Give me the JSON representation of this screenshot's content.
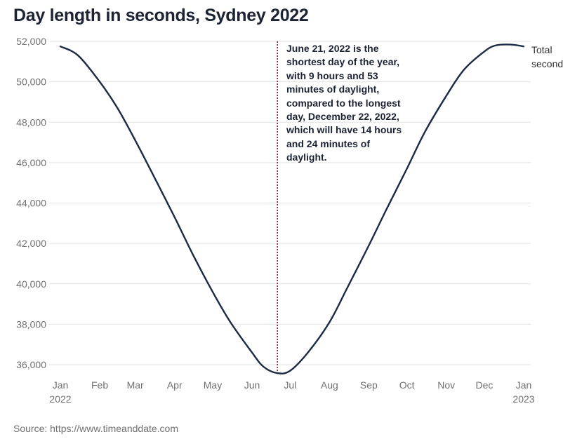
{
  "chart_data": {
    "type": "line",
    "title": "Day length in seconds, Sydney 2022",
    "xlabel": "",
    "ylabel": "",
    "series": [
      {
        "name": "Total seconds",
        "color": "#1c2a44",
        "points": [
          {
            "x": "2022-01-01",
            "y": 51750
          },
          {
            "x": "2022-01-15",
            "y": 51300
          },
          {
            "x": "2022-02-01",
            "y": 50000
          },
          {
            "x": "2022-02-15",
            "y": 48700
          },
          {
            "x": "2022-03-01",
            "y": 47100
          },
          {
            "x": "2022-03-15",
            "y": 45400
          },
          {
            "x": "2022-04-01",
            "y": 43300
          },
          {
            "x": "2022-04-15",
            "y": 41500
          },
          {
            "x": "2022-05-01",
            "y": 39600
          },
          {
            "x": "2022-05-15",
            "y": 38100
          },
          {
            "x": "2022-06-01",
            "y": 36600
          },
          {
            "x": "2022-06-10",
            "y": 35900
          },
          {
            "x": "2022-06-21",
            "y": 35580
          },
          {
            "x": "2022-07-01",
            "y": 35700
          },
          {
            "x": "2022-07-15",
            "y": 36600
          },
          {
            "x": "2022-08-01",
            "y": 38100
          },
          {
            "x": "2022-08-15",
            "y": 39800
          },
          {
            "x": "2022-09-01",
            "y": 41900
          },
          {
            "x": "2022-09-15",
            "y": 43700
          },
          {
            "x": "2022-10-01",
            "y": 45700
          },
          {
            "x": "2022-10-15",
            "y": 47500
          },
          {
            "x": "2022-11-01",
            "y": 49300
          },
          {
            "x": "2022-11-15",
            "y": 50600
          },
          {
            "x": "2022-12-01",
            "y": 51500
          },
          {
            "x": "2022-12-10",
            "y": 51800
          },
          {
            "x": "2022-12-22",
            "y": 51840
          },
          {
            "x": "2023-01-01",
            "y": 51750
          }
        ]
      }
    ],
    "y_ticks": [
      {
        "value": 36000,
        "label": "36,000"
      },
      {
        "value": 38000,
        "label": "38,000"
      },
      {
        "value": 40000,
        "label": "40,000"
      },
      {
        "value": 42000,
        "label": "42,000"
      },
      {
        "value": 44000,
        "label": "44,000"
      },
      {
        "value": 46000,
        "label": "46,000"
      },
      {
        "value": 48000,
        "label": "48,000"
      },
      {
        "value": 50000,
        "label": "50,000"
      },
      {
        "value": 52000,
        "label": "52,000"
      }
    ],
    "x_ticks": [
      {
        "date": "2022-01-01",
        "label": "Jan",
        "sublabel": "2022"
      },
      {
        "date": "2022-02-01",
        "label": "Feb",
        "sublabel": ""
      },
      {
        "date": "2022-03-01",
        "label": "Mar",
        "sublabel": ""
      },
      {
        "date": "2022-04-01",
        "label": "Apr",
        "sublabel": ""
      },
      {
        "date": "2022-05-01",
        "label": "May",
        "sublabel": ""
      },
      {
        "date": "2022-06-01",
        "label": "Jun",
        "sublabel": ""
      },
      {
        "date": "2022-07-01",
        "label": "Jul",
        "sublabel": ""
      },
      {
        "date": "2022-08-01",
        "label": "Aug",
        "sublabel": ""
      },
      {
        "date": "2022-09-01",
        "label": "Sep",
        "sublabel": ""
      },
      {
        "date": "2022-10-01",
        "label": "Oct",
        "sublabel": ""
      },
      {
        "date": "2022-11-01",
        "label": "Nov",
        "sublabel": ""
      },
      {
        "date": "2022-12-01",
        "label": "Dec",
        "sublabel": ""
      },
      {
        "date": "2023-01-01",
        "label": "Jan",
        "sublabel": "2023"
      }
    ],
    "xlim": [
      "2022-01-01",
      "2023-01-01"
    ],
    "ylim": [
      35500,
      52000
    ],
    "grid": true,
    "reference_line": {
      "x": "2022-06-21",
      "color": "#9b1c2e",
      "style": "dotted"
    },
    "annotation": "June 21, 2022 is the shortest day of the year, with 9 hours and 53 minutes of daylight, compared to the longest day, December 22, 2022, which will have 14 hours and 24 minutes of daylight.",
    "series_label": "Total seconds",
    "source": "Source: https://www.timeanddate.com"
  }
}
